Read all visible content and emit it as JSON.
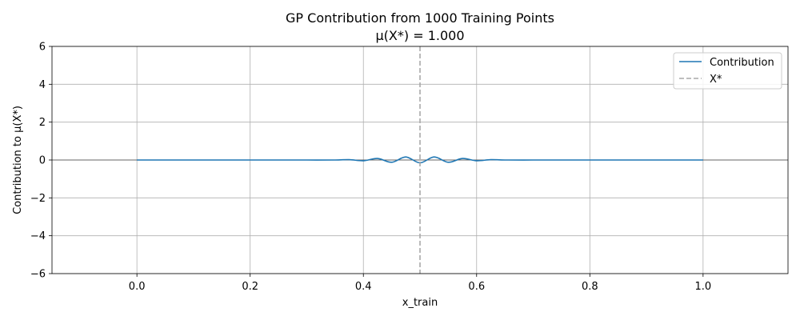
{
  "chart_data": {
    "type": "line",
    "title": "GP Contribution from 1000 Training Points",
    "subtitle": "μ(X*) = 1.000",
    "xlabel": "x_train",
    "ylabel": "Contribution to μ(X*)",
    "xlim": [
      -0.15,
      1.15
    ],
    "ylim": [
      -6,
      6
    ],
    "x_ticks": [
      0.0,
      0.2,
      0.4,
      0.6,
      0.8,
      1.0
    ],
    "x_tick_labels": [
      "0.0",
      "0.2",
      "0.4",
      "0.6",
      "0.8",
      "1.0"
    ],
    "y_ticks": [
      -6,
      -4,
      -2,
      0,
      2,
      4,
      6
    ],
    "y_tick_labels": [
      "−6",
      "−4",
      "−2",
      "0",
      "2",
      "4",
      "6"
    ],
    "grid": true,
    "legend_position": "top-right",
    "series": [
      {
        "name": "Contribution",
        "color": "#1f77b4",
        "style": "solid",
        "x": [
          0.0,
          0.05,
          0.1,
          0.15,
          0.2,
          0.25,
          0.3,
          0.35,
          0.375,
          0.4,
          0.425,
          0.45,
          0.475,
          0.5,
          0.525,
          0.55,
          0.575,
          0.6,
          0.625,
          0.65,
          0.7,
          0.75,
          0.8,
          0.85,
          0.9,
          0.95,
          1.0
        ],
        "y": [
          0.0,
          0.0,
          0.0,
          0.0,
          0.0,
          0.0,
          0.0,
          0.0,
          0.02,
          -0.04,
          0.08,
          -0.12,
          0.16,
          -0.15,
          0.16,
          -0.12,
          0.08,
          -0.04,
          0.02,
          0.0,
          0.0,
          0.0,
          0.0,
          0.0,
          0.0,
          0.0,
          0.0
        ]
      },
      {
        "name": "X*",
        "color": "#a9a9a9",
        "style": "dashed",
        "vertical_line_x": 0.5
      }
    ]
  }
}
